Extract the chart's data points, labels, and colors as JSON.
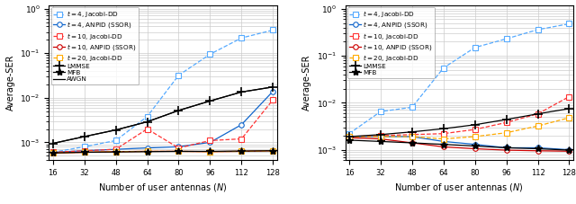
{
  "x": [
    16,
    32,
    48,
    64,
    80,
    96,
    112,
    128
  ],
  "left": {
    "t4_jacobi": [
      0.0006,
      0.0008,
      0.0011,
      0.0038,
      0.032,
      0.095,
      0.22,
      0.33
    ],
    "t4_anpid": [
      0.0006,
      0.00065,
      0.0007,
      0.00075,
      0.0008,
      0.001,
      0.0025,
      0.014
    ],
    "t10_jacobi": [
      0.0006,
      0.00065,
      0.0007,
      0.002,
      0.00075,
      0.0011,
      0.0012,
      0.009
    ],
    "t10_anpid": [
      0.00058,
      0.0006,
      0.00062,
      0.00063,
      0.00063,
      0.00062,
      0.00063,
      0.00065
    ],
    "t20_jacobi": [
      0.00058,
      0.0006,
      0.00062,
      0.00063,
      0.00063,
      0.00062,
      0.00063,
      0.00065
    ],
    "lmmse": [
      0.00095,
      0.00135,
      0.0019,
      0.0029,
      0.0052,
      0.0085,
      0.0135,
      0.0175
    ],
    "mfb": [
      0.00058,
      0.0006,
      0.00061,
      0.00062,
      0.00063,
      0.00063,
      0.00064,
      0.00065
    ],
    "awgn": [
      0.00095,
      0.00135,
      0.0019,
      0.0029,
      0.0052,
      0.0085,
      0.0135,
      0.0175
    ]
  },
  "right": {
    "t4_jacobi": [
      0.0022,
      0.0065,
      0.008,
      0.055,
      0.15,
      0.23,
      0.36,
      0.48
    ],
    "t4_anpid": [
      0.0019,
      0.0019,
      0.0019,
      0.0015,
      0.0013,
      0.0011,
      0.0011,
      0.001
    ],
    "t10_jacobi": [
      0.0019,
      0.002,
      0.0021,
      0.0022,
      0.0027,
      0.0038,
      0.0058,
      0.0135
    ],
    "t10_anpid": [
      0.0018,
      0.0017,
      0.0014,
      0.00115,
      0.00105,
      0.00098,
      0.00095,
      0.00093
    ],
    "t20_jacobi": [
      0.0019,
      0.0019,
      0.0019,
      0.0017,
      0.0019,
      0.0023,
      0.0032,
      0.0048
    ],
    "lmmse": [
      0.0019,
      0.0021,
      0.0024,
      0.0028,
      0.0034,
      0.0044,
      0.0058,
      0.0075
    ],
    "mfb": [
      0.0016,
      0.0015,
      0.0014,
      0.0013,
      0.0012,
      0.0011,
      0.00105,
      0.00098
    ]
  },
  "colors": {
    "blue_dashed": "#55aaff",
    "blue_solid": "#1166cc",
    "red_dashed": "#ff3333",
    "red_solid": "#cc0000",
    "orange_dashed": "#ffaa00",
    "black_cross": "#000000",
    "black_star": "#000000",
    "black_awgn": "#000000"
  },
  "xlabel": "Number of user antennas ($N$)",
  "ylabel": "Average-SER",
  "legend_left": [
    "$t = 4$, Jacobi-DD",
    "$t = 4$, ANPID (SSOR)",
    "$t = 10$, Jacobi-DD",
    "$t = 10$, ANPID (SSOR)",
    "$t = 20$, Jacobi-DD",
    "LMMSE",
    "MFB",
    "AWGN"
  ],
  "legend_right": [
    "$t = 4$, Jacobi-DD",
    "$t = 4$, ANPID (SSOR)",
    "$t = 10$, Jacobi-DD",
    "$t = 10$, ANPID (SSOR)",
    "$t = 20$, Jacobi-DD",
    "LMMSE",
    "MFB"
  ],
  "ylim_left": [
    0.0004,
    1.2
  ],
  "ylim_right": [
    0.0006,
    1.2
  ],
  "yticks_left": [
    0.001,
    0.01,
    0.1,
    1.0
  ],
  "yticks_right": [
    0.001,
    0.01,
    0.1,
    1.0
  ],
  "xticks": [
    16,
    32,
    48,
    64,
    80,
    96,
    112,
    128
  ],
  "grid_color": "#cccccc"
}
